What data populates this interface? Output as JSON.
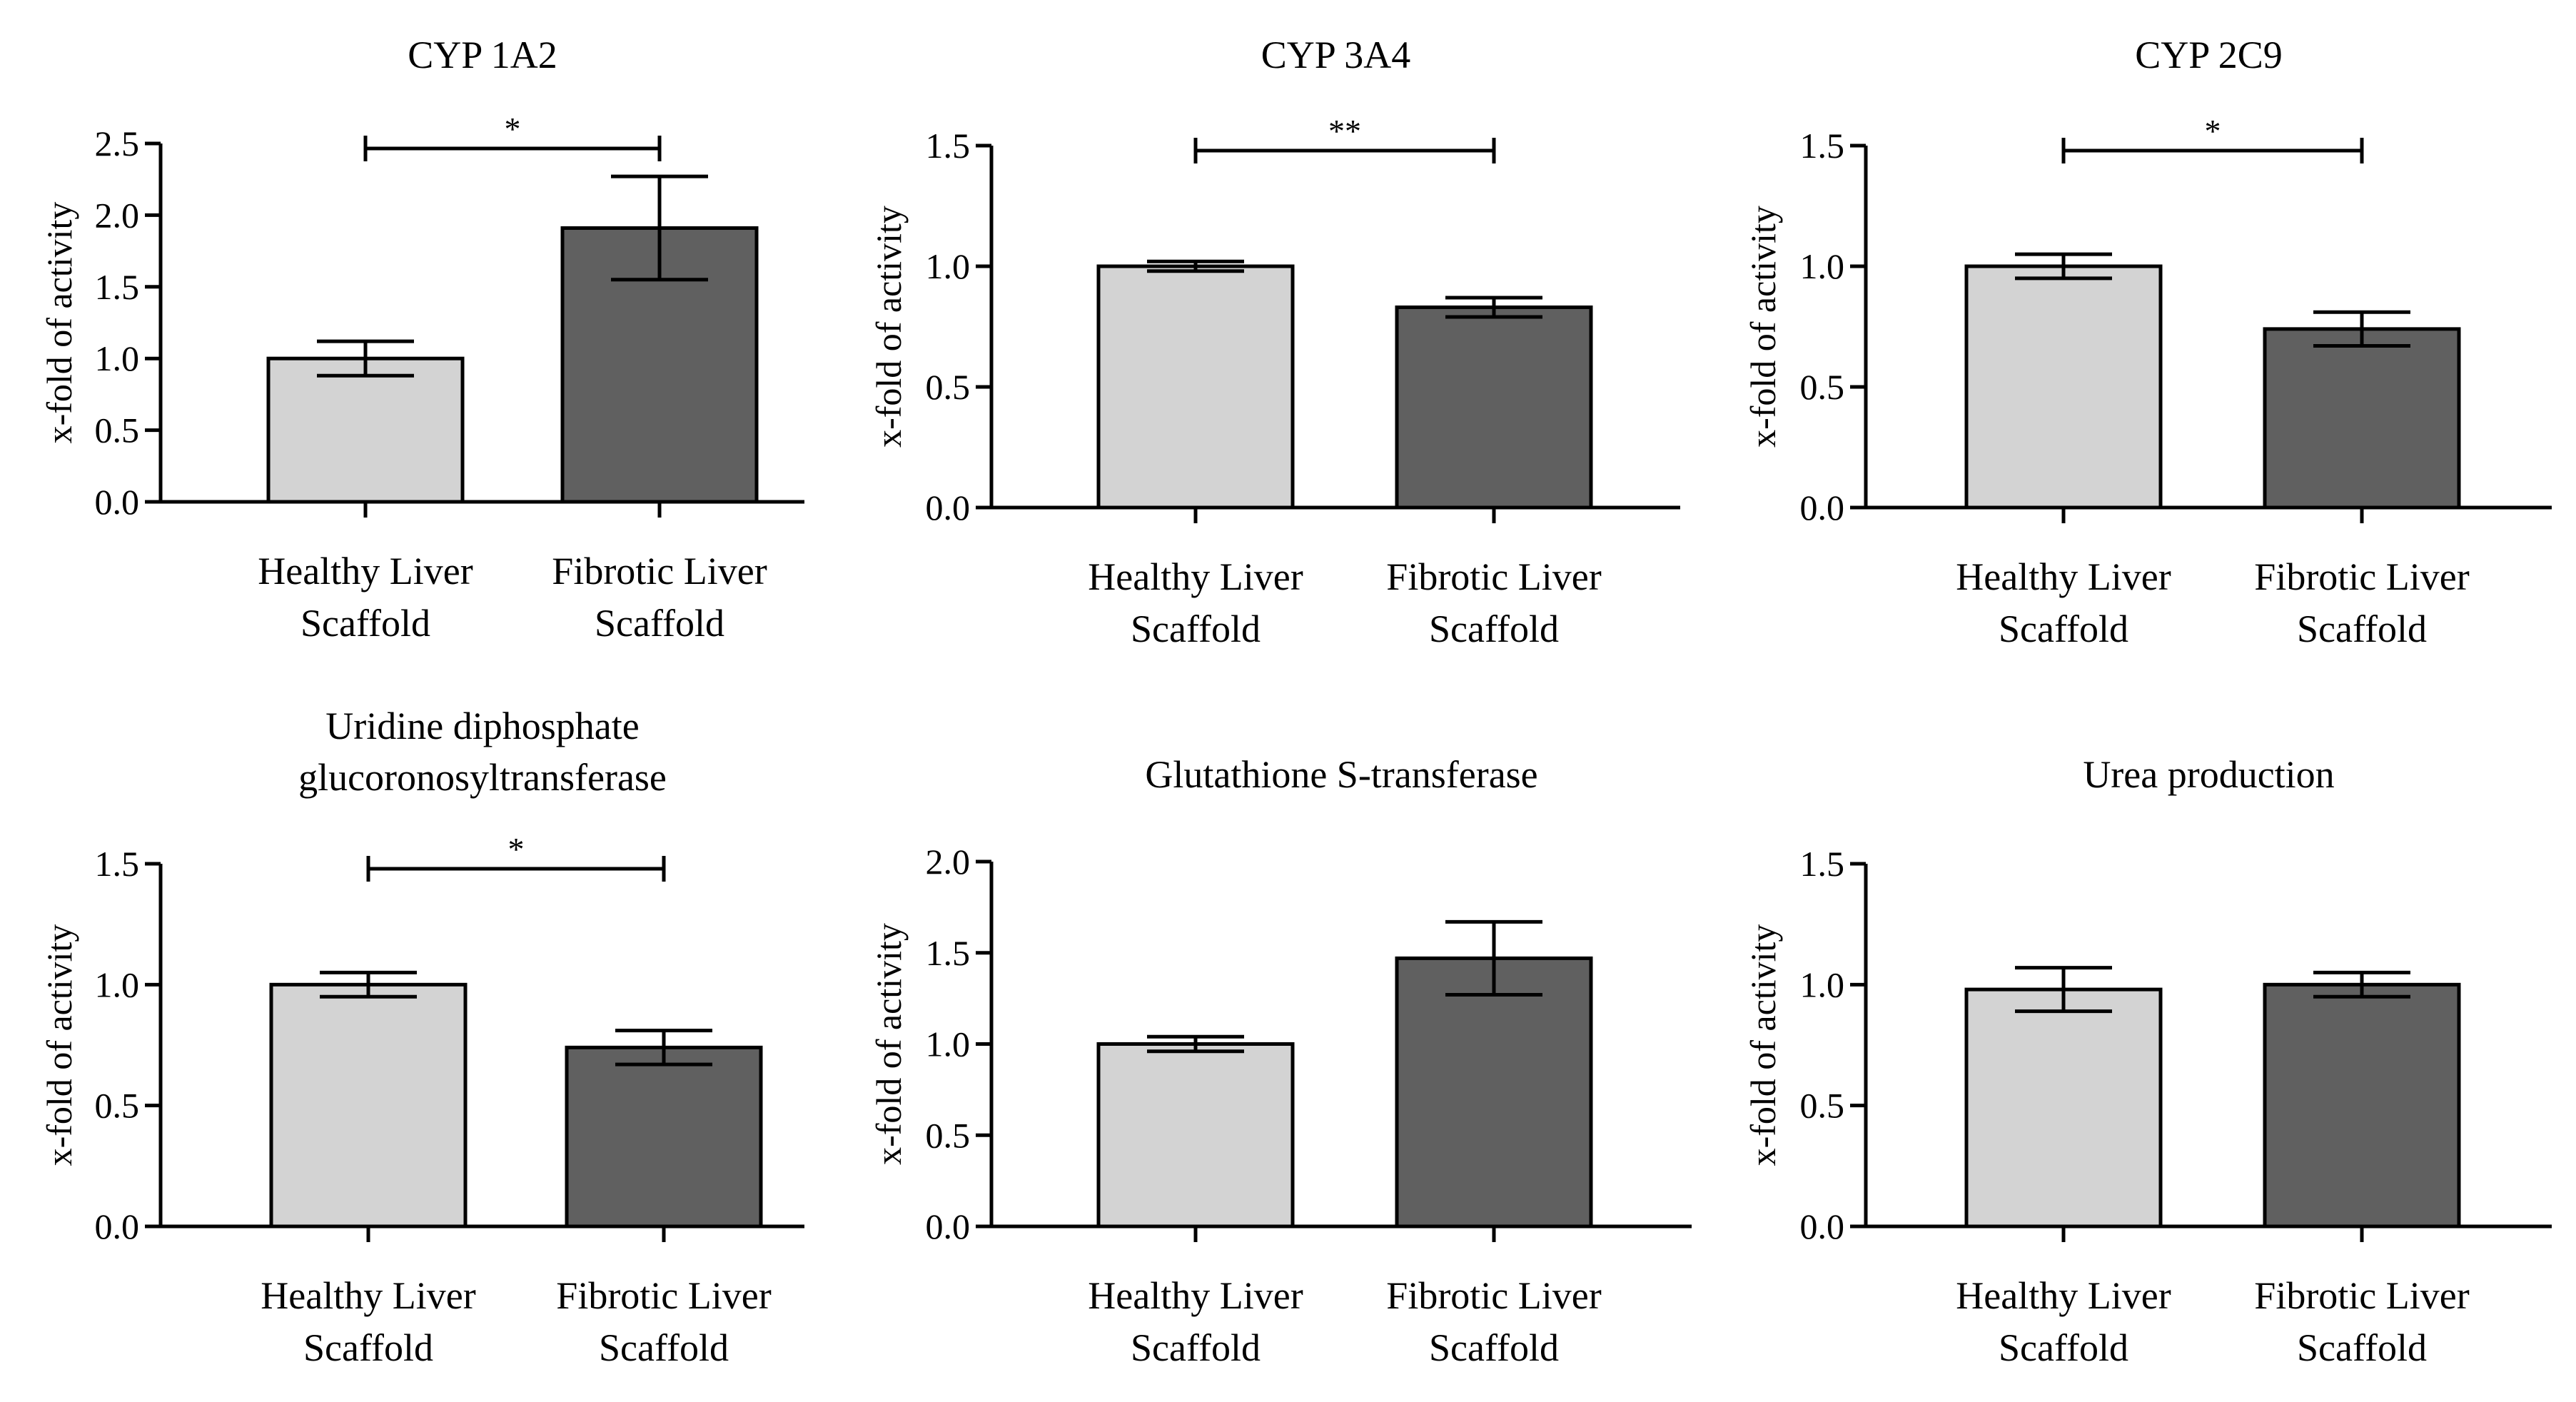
{
  "colors": {
    "healthy": "#d3d3d3",
    "fibrotic": "#606060",
    "stroke": "#000000"
  },
  "chart_data": [
    {
      "type": "bar",
      "title": [
        "CYP 1A2"
      ],
      "ylabel": "x-fold of activity",
      "xlabel": "",
      "ylim": [
        0,
        2.5
      ],
      "yticks": [
        0.0,
        0.5,
        1.0,
        1.5,
        2.0,
        2.5
      ],
      "ytick_labels": [
        "0.0",
        "0.5",
        "1.0",
        "1.5",
        "2.0",
        "2.5"
      ],
      "categories": [
        [
          "Healthy Liver",
          "Scaffold"
        ],
        [
          "Fibrotic Liver",
          "Scaffold"
        ]
      ],
      "values": [
        1.0,
        1.91
      ],
      "errors": [
        0.12,
        0.36
      ],
      "significance": "*"
    },
    {
      "type": "bar",
      "title": [
        "CYP 3A4"
      ],
      "ylabel": "x-fold of activity",
      "xlabel": "",
      "ylim": [
        0,
        1.5
      ],
      "yticks": [
        0.0,
        0.5,
        1.0,
        1.5
      ],
      "ytick_labels": [
        "0.0",
        "0.5",
        "1.0",
        "1.5"
      ],
      "categories": [
        [
          "Healthy Liver",
          "Scaffold"
        ],
        [
          "Fibrotic Liver",
          "Scaffold"
        ]
      ],
      "values": [
        1.0,
        0.83
      ],
      "errors": [
        0.02,
        0.04
      ],
      "significance": "**"
    },
    {
      "type": "bar",
      "title": [
        "CYP 2C9"
      ],
      "ylabel": "x-fold of activity",
      "xlabel": "",
      "ylim": [
        0,
        1.5
      ],
      "yticks": [
        0.0,
        0.5,
        1.0,
        1.5
      ],
      "ytick_labels": [
        "0.0",
        "0.5",
        "1.0",
        "1.5"
      ],
      "categories": [
        [
          "Healthy Liver",
          "Scaffold"
        ],
        [
          "Fibrotic Liver",
          "Scaffold"
        ]
      ],
      "values": [
        1.0,
        0.74
      ],
      "errors": [
        0.05,
        0.07
      ],
      "significance": "*"
    },
    {
      "type": "bar",
      "title": [
        "Uridine diphosphate",
        "glucoronosyltransferase"
      ],
      "ylabel": "x-fold of activity",
      "xlabel": "",
      "ylim": [
        0,
        1.5
      ],
      "yticks": [
        0.0,
        0.5,
        1.0,
        1.5
      ],
      "ytick_labels": [
        "0.0",
        "0.5",
        "1.0",
        "1.5"
      ],
      "categories": [
        [
          "Healthy Liver",
          "Scaffold"
        ],
        [
          "Fibrotic Liver",
          "Scaffold"
        ]
      ],
      "values": [
        1.0,
        0.74
      ],
      "errors": [
        0.05,
        0.07
      ],
      "significance": "*"
    },
    {
      "type": "bar",
      "title": [
        "Glutathione S-transferase"
      ],
      "ylabel": "x-fold of activity",
      "xlabel": "",
      "ylim": [
        0,
        2.0
      ],
      "yticks": [
        0.0,
        0.5,
        1.0,
        1.5,
        2.0
      ],
      "ytick_labels": [
        "0.0",
        "0.5",
        "1.0",
        "1.5",
        "2.0"
      ],
      "categories": [
        [
          "Healthy Liver",
          "Scaffold"
        ],
        [
          "Fibrotic Liver",
          "Scaffold"
        ]
      ],
      "values": [
        1.0,
        1.47
      ],
      "errors": [
        0.04,
        0.2
      ],
      "significance": ""
    },
    {
      "type": "bar",
      "title": [
        "Urea production"
      ],
      "ylabel": "x-fold of activity",
      "xlabel": "",
      "ylim": [
        0,
        1.5
      ],
      "yticks": [
        0.0,
        0.5,
        1.0,
        1.5
      ],
      "ytick_labels": [
        "0.0",
        "0.5",
        "1.0",
        "1.5"
      ],
      "categories": [
        [
          "Healthy Liver",
          "Scaffold"
        ],
        [
          "Fibrotic Liver",
          "Scaffold"
        ]
      ],
      "values": [
        0.98,
        1.0
      ],
      "errors": [
        0.09,
        0.05
      ],
      "significance": ""
    }
  ]
}
